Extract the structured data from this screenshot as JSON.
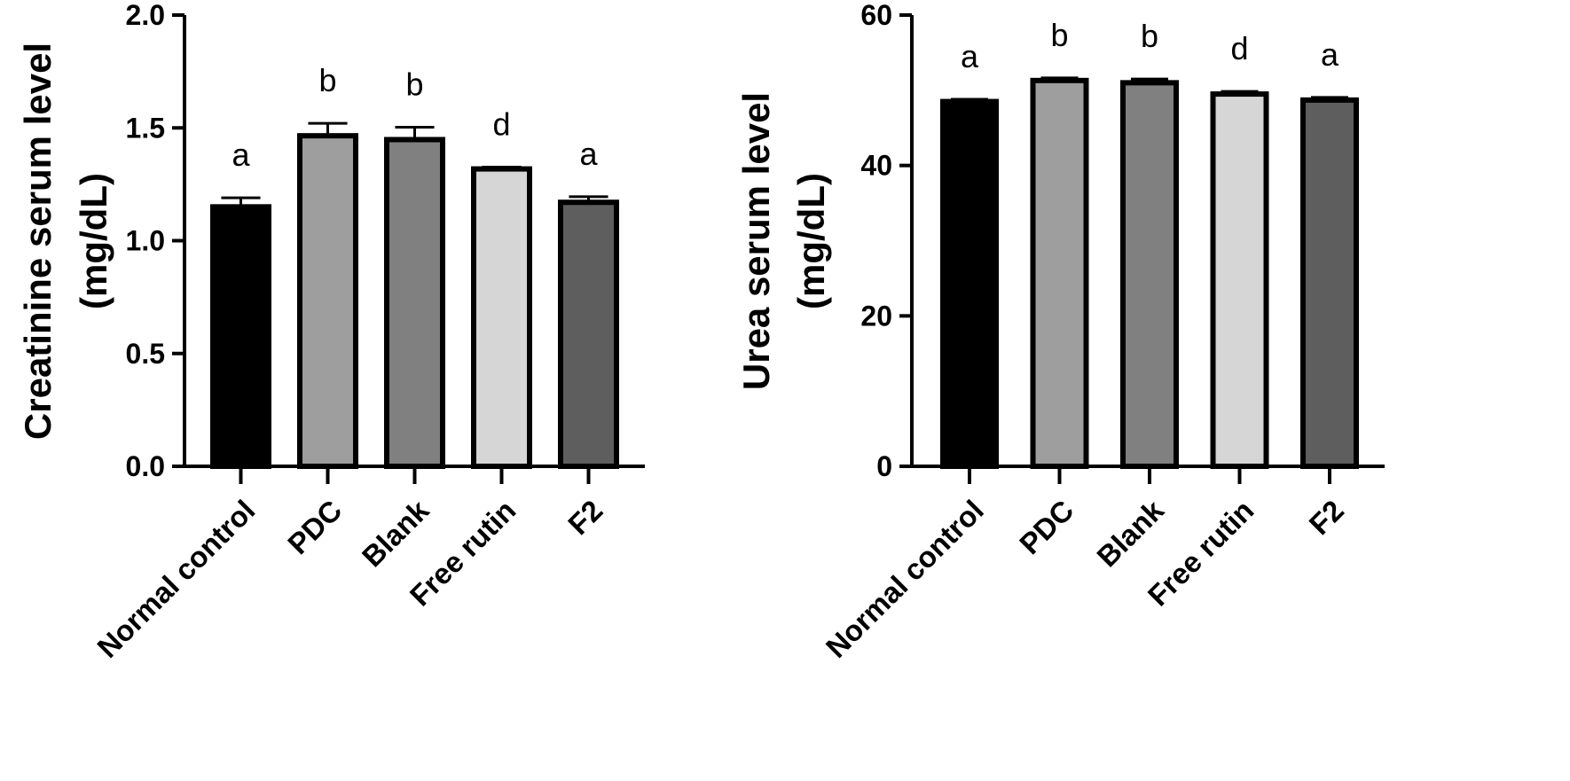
{
  "chart_data": [
    {
      "type": "bar",
      "ylabel_line1": "Creatinine serum level",
      "ylabel_line2": "(mg/dL)",
      "categories": [
        "Normal control",
        "PDC",
        "Blank",
        "Free rutin",
        "F2"
      ],
      "values": [
        1.15,
        1.465,
        1.448,
        1.318,
        1.17
      ],
      "errors": [
        0.04,
        0.055,
        0.055,
        0.008,
        0.025
      ],
      "significance": [
        "a",
        "b",
        "b",
        "d",
        "a"
      ],
      "ylim": [
        0,
        2.0
      ],
      "yticks": [
        0,
        0.5,
        1.0,
        1.5,
        2.0
      ],
      "ytick_labels": [
        "0.0",
        "0.5",
        "1.0",
        "1.5",
        "2.0"
      ],
      "colors": [
        "#000000",
        "#9e9e9e",
        "#808080",
        "#d6d6d6",
        "#5e5e5e"
      ],
      "grid": false
    },
    {
      "type": "bar",
      "ylabel_line1": "Urea serum level",
      "ylabel_line2": "(mg/dL)",
      "categories": [
        "Normal control",
        "PDC",
        "Blank",
        "Free rutin",
        "F2"
      ],
      "values": [
        48.5,
        51.3,
        51.0,
        49.5,
        48.7
      ],
      "errors": [
        0.3,
        0.35,
        0.5,
        0.35,
        0.35
      ],
      "significance": [
        "a",
        "b",
        "b",
        "d",
        "a"
      ],
      "ylim": [
        0,
        60
      ],
      "yticks": [
        0,
        20,
        40,
        60
      ],
      "ytick_labels": [
        "0",
        "20",
        "40",
        "60"
      ],
      "colors": [
        "#000000",
        "#9e9e9e",
        "#808080",
        "#d6d6d6",
        "#5e5e5e"
      ],
      "grid": false
    }
  ]
}
